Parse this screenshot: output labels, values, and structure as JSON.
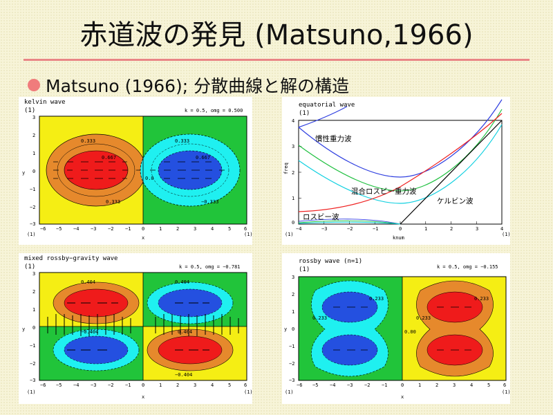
{
  "slide": {
    "title": "赤道波の発見 (Matsuno,1966)",
    "bullet": "Matsuno (1966); 分散曲線と解の構造"
  },
  "colors": {
    "red": "#ef1b1b",
    "orange": "#e6892c",
    "yellow": "#f5ee14",
    "green": "#21c43a",
    "cyan": "#1ff0f0",
    "blue": "#2450e0",
    "accent_rule": "#e98686",
    "bullet": "#f07c7c"
  },
  "panels": {
    "kelvin": {
      "title": "kelvin wave",
      "label": "(1)",
      "params": "k = 0.5, omg = 0.500",
      "xlabel": "x",
      "ylabel": "y",
      "xticks": [
        "−6",
        "−5",
        "−4",
        "−3",
        "−2",
        "−1",
        "0",
        "1",
        "2",
        "3",
        "4",
        "5",
        "6"
      ],
      "yticks": [
        "3",
        "2",
        "1",
        "0",
        "−1",
        "−2",
        "−3"
      ],
      "contours_left": [
        "0.333",
        "0.667",
        "0.333"
      ],
      "contours_right": [
        "0.333",
        "0.667",
        "−0.333"
      ],
      "zero_label": "0.0",
      "corner_left": "(1)",
      "corner_right": "(1)"
    },
    "dispersion": {
      "title": "equatorial wave",
      "label": "(1)",
      "xlabel": "knum",
      "ylabel": "freq",
      "xticks": [
        "−4",
        "−3",
        "−2",
        "−1",
        "0",
        "1",
        "2",
        "3",
        "4"
      ],
      "yticks": [
        "4",
        "3",
        "2",
        "1",
        "0"
      ],
      "annotations": {
        "inertia_gravity": "慣性重力波",
        "mixed": "混合ロスビー重力波",
        "kelvin": "ケルビン波",
        "rossby": "ロスビー波"
      },
      "corner_left": "(1)",
      "corner_right": "(1)"
    },
    "mixed": {
      "title": "mixed rossby−gravity wave",
      "label": "(1)",
      "params": "k = 0.5, omg = −0.781",
      "xlabel": "x",
      "ylabel": "y",
      "xticks": [
        "−6",
        "−5",
        "−4",
        "−3",
        "−2",
        "−1",
        "0",
        "1",
        "2",
        "3",
        "4",
        "5",
        "6"
      ],
      "yticks": [
        "3",
        "2",
        "1",
        "0",
        "−1",
        "−2",
        "−3"
      ],
      "contours": [
        "0.404",
        "0.404",
        "−0.404",
        "−0.404",
        "0.404"
      ],
      "corner_left": "(1)",
      "corner_right": "(1)"
    },
    "rossby": {
      "title": "rossby wave (n=1)",
      "label": "(1)",
      "params": "k = 0.5, omg = −0.155",
      "xlabel": "x",
      "ylabel": "y",
      "xticks": [
        "−6",
        "−5",
        "−4",
        "−3",
        "−2",
        "−1",
        "0",
        "1",
        "2",
        "3",
        "4",
        "5",
        "6"
      ],
      "yticks": [
        "3",
        "2",
        "1",
        "0",
        "−1",
        "−2",
        "−3"
      ],
      "contours": [
        "0.233",
        "0.233",
        "0.233",
        "0.233"
      ],
      "zero_label": "0.00",
      "corner_left": "(1)",
      "corner_right": "(1)"
    }
  }
}
